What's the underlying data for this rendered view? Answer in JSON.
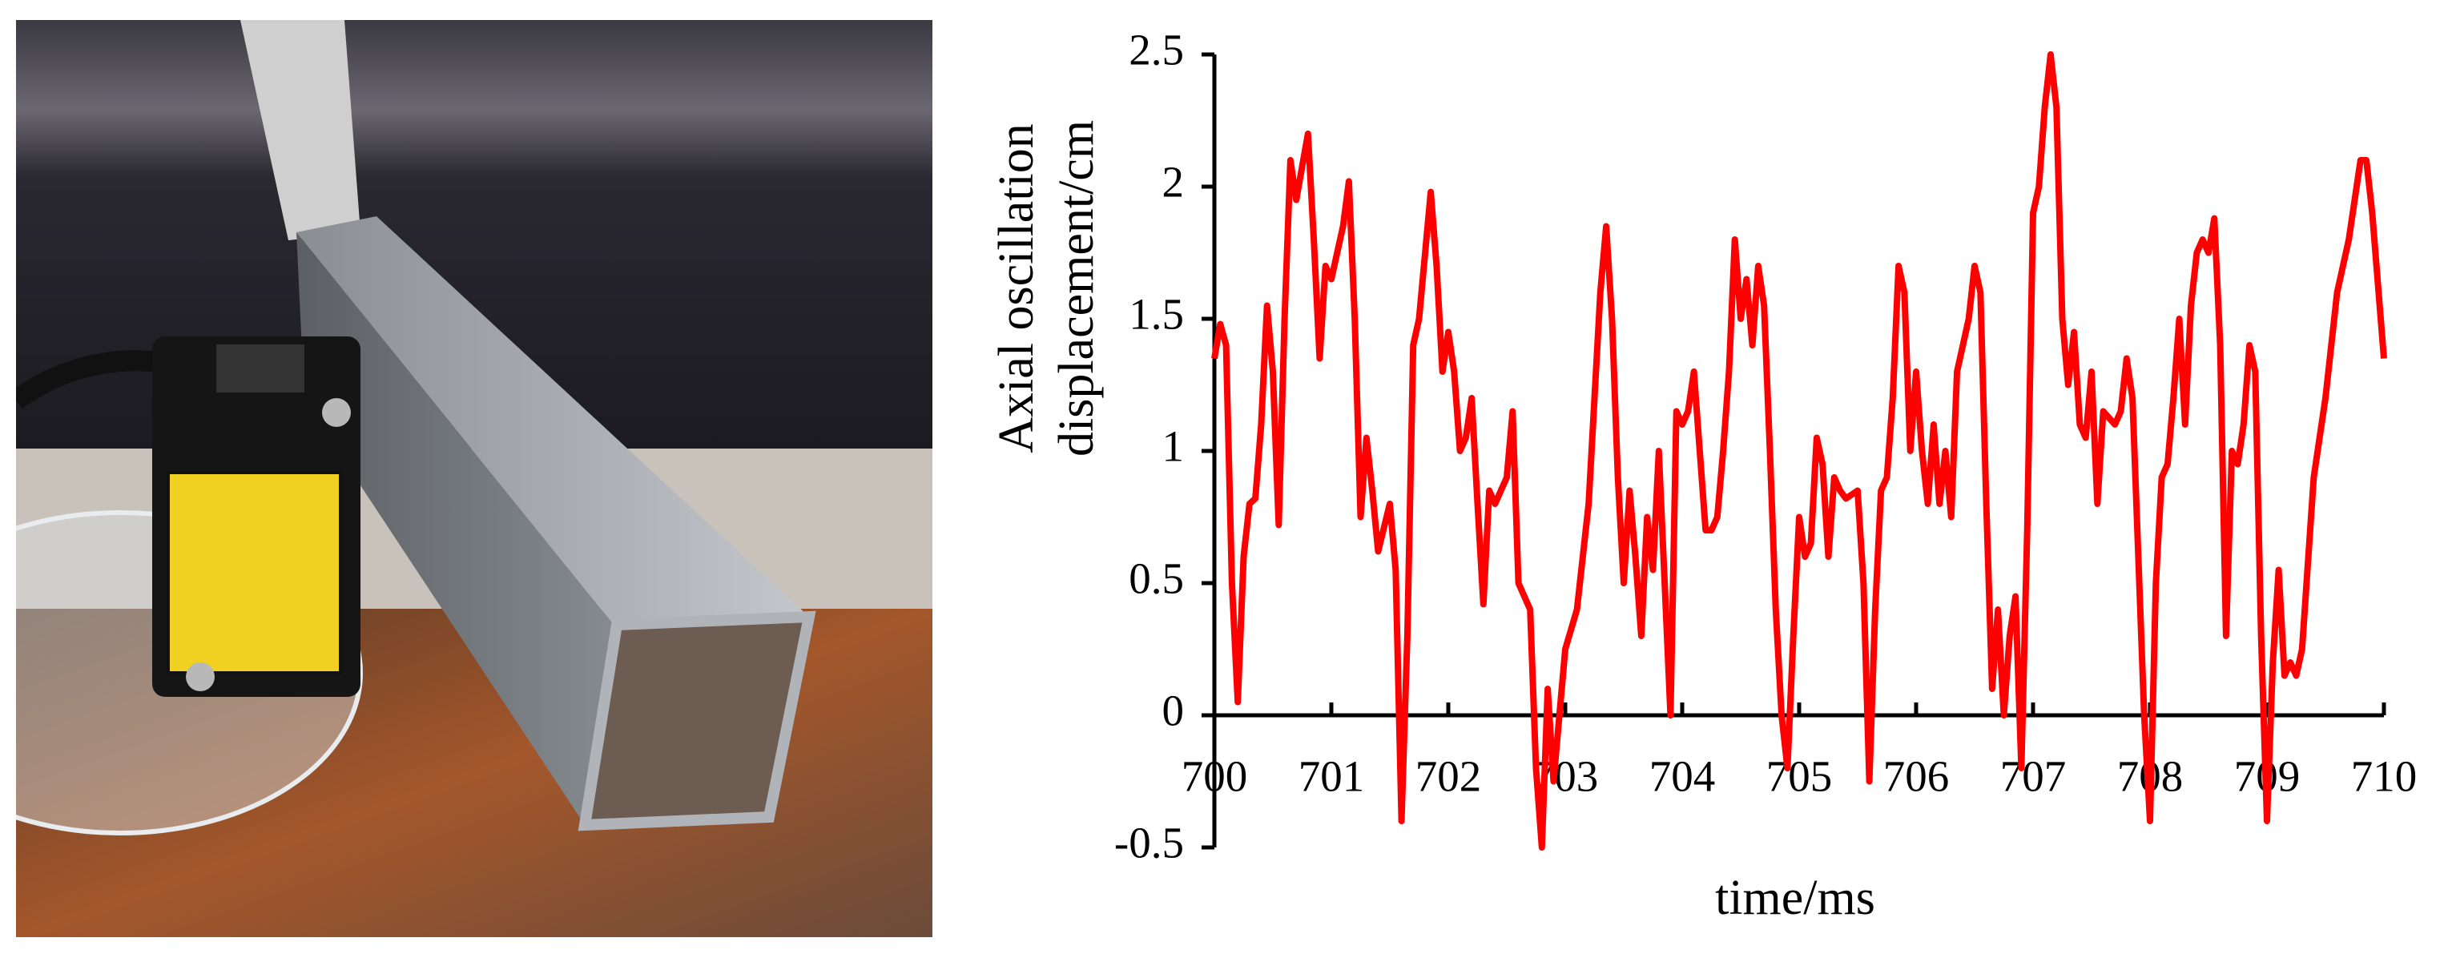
{
  "chart_data": {
    "type": "line",
    "xlabel": "time/ms",
    "ylabel": [
      "Axial oscillation",
      "displacement/cm"
    ],
    "xlim": [
      700,
      710
    ],
    "xticks": [
      700,
      701,
      702,
      703,
      704,
      705,
      706,
      707,
      708,
      709,
      710
    ],
    "ylim": [
      -0.5,
      2.5
    ],
    "yticks": [
      -0.5,
      0,
      0.5,
      1,
      1.5,
      2,
      2.5
    ],
    "grid": false,
    "series": [
      {
        "color": "#ff0000",
        "x": [
          700.0,
          700.05,
          700.1,
          700.15,
          700.2,
          700.25,
          700.3,
          700.35,
          700.4,
          700.45,
          700.5,
          700.55,
          700.6,
          700.65,
          700.7,
          700.8,
          700.85,
          700.9,
          700.95,
          701.0,
          701.1,
          701.15,
          701.2,
          701.25,
          701.3,
          701.35,
          701.4,
          701.5,
          701.55,
          701.6,
          701.65,
          701.7,
          701.75,
          701.85,
          701.9,
          701.95,
          702.0,
          702.05,
          702.1,
          702.15,
          702.2,
          702.25,
          702.3,
          702.35,
          702.4,
          702.5,
          702.55,
          702.6,
          702.7,
          702.75,
          702.8,
          702.85,
          702.9,
          702.95,
          703.0,
          703.1,
          703.2,
          703.3,
          703.35,
          703.4,
          703.45,
          703.5,
          703.55,
          703.6,
          703.65,
          703.7,
          703.75,
          703.8,
          703.85,
          703.9,
          703.95,
          704.0,
          704.05,
          704.1,
          704.15,
          704.2,
          704.25,
          704.3,
          704.35,
          704.4,
          704.45,
          704.5,
          704.55,
          704.6,
          704.65,
          704.7,
          704.75,
          704.8,
          704.85,
          704.9,
          704.95,
          705.0,
          705.05,
          705.1,
          705.15,
          705.2,
          705.25,
          705.3,
          705.35,
          705.4,
          705.5,
          705.55,
          705.6,
          705.65,
          705.7,
          705.75,
          705.8,
          705.85,
          705.9,
          705.95,
          706.0,
          706.05,
          706.1,
          706.15,
          706.2,
          706.25,
          706.3,
          706.35,
          706.4,
          706.45,
          706.5,
          706.55,
          706.6,
          706.65,
          706.7,
          706.75,
          706.8,
          706.85,
          706.9,
          706.95,
          707.0,
          707.05,
          707.1,
          707.15,
          707.2,
          707.25,
          707.3,
          707.35,
          707.4,
          707.45,
          707.5,
          707.55,
          707.6,
          707.7,
          707.75,
          707.8,
          707.85,
          707.9,
          707.95,
          708.0,
          708.05,
          708.1,
          708.15,
          708.2,
          708.25,
          708.3,
          708.35,
          708.4,
          708.45,
          708.5,
          708.55,
          708.6,
          708.65,
          708.7,
          708.75,
          708.8,
          708.85,
          708.9,
          708.95,
          709.0,
          709.05,
          709.1,
          709.15,
          709.2,
          709.25,
          709.3,
          709.4,
          709.5,
          709.6,
          709.7,
          709.8,
          709.85,
          709.9,
          710.0
        ],
        "values": [
          1.35,
          1.48,
          1.4,
          0.5,
          0.05,
          0.6,
          0.8,
          0.82,
          1.1,
          1.55,
          1.3,
          0.72,
          1.5,
          2.1,
          1.95,
          2.2,
          1.8,
          1.35,
          1.7,
          1.65,
          1.85,
          2.02,
          1.5,
          0.75,
          1.05,
          0.85,
          0.62,
          0.8,
          0.55,
          -0.4,
          0.3,
          1.4,
          1.5,
          1.98,
          1.7,
          1.3,
          1.45,
          1.3,
          1.0,
          1.05,
          1.2,
          0.8,
          0.42,
          0.85,
          0.8,
          0.9,
          1.15,
          0.5,
          0.4,
          -0.2,
          -0.5,
          0.1,
          -0.25,
          0.0,
          0.25,
          0.4,
          0.8,
          1.6,
          1.85,
          1.5,
          0.9,
          0.5,
          0.85,
          0.6,
          0.3,
          0.75,
          0.55,
          1.0,
          0.5,
          0.0,
          1.15,
          1.1,
          1.15,
          1.3,
          1.0,
          0.7,
          0.7,
          0.75,
          1.0,
          1.3,
          1.8,
          1.5,
          1.65,
          1.4,
          1.7,
          1.55,
          1.0,
          0.4,
          0.0,
          -0.2,
          0.3,
          0.75,
          0.6,
          0.65,
          1.05,
          0.95,
          0.6,
          0.9,
          0.85,
          0.82,
          0.85,
          0.5,
          -0.25,
          0.4,
          0.85,
          0.9,
          1.2,
          1.7,
          1.6,
          1.0,
          1.3,
          1.0,
          0.8,
          1.1,
          0.8,
          1.0,
          0.75,
          1.3,
          1.4,
          1.5,
          1.7,
          1.6,
          0.8,
          0.1,
          0.4,
          0.0,
          0.3,
          0.45,
          -0.2,
          0.7,
          1.9,
          2.0,
          2.3,
          2.5,
          2.3,
          1.5,
          1.25,
          1.45,
          1.1,
          1.05,
          1.3,
          0.8,
          1.15,
          1.1,
          1.15,
          1.35,
          1.2,
          0.6,
          0.0,
          -0.4,
          0.5,
          0.9,
          0.95,
          1.2,
          1.5,
          1.1,
          1.55,
          1.75,
          1.8,
          1.75,
          1.88,
          1.4,
          0.3,
          1.0,
          0.95,
          1.1,
          1.4,
          1.3,
          0.3,
          -0.4,
          0.2,
          0.55,
          0.15,
          0.2,
          0.15,
          0.25,
          0.9,
          1.2,
          1.6,
          1.8,
          2.1,
          2.1,
          1.9,
          1.35
        ]
      }
    ]
  }
}
